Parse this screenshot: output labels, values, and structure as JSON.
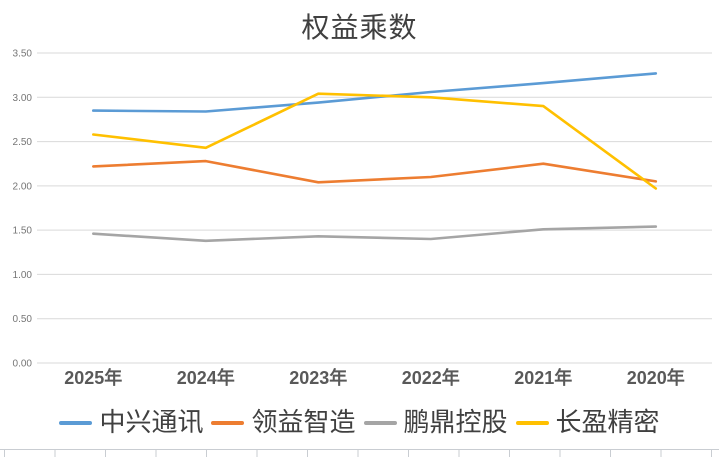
{
  "title": "权益乘数",
  "chart_data": {
    "type": "line",
    "title": "权益乘数",
    "categories": [
      "2025年",
      "2024年",
      "2023年",
      "2022年",
      "2021年",
      "2020年"
    ],
    "series": [
      {
        "name": "中兴通讯",
        "color": "#5B9BD5",
        "values": [
          2.85,
          2.84,
          2.94,
          3.06,
          3.16,
          3.27
        ]
      },
      {
        "name": "领益智造",
        "color": "#ED7D31",
        "values": [
          2.22,
          2.28,
          2.04,
          2.1,
          2.25,
          2.05
        ]
      },
      {
        "name": "鹏鼎控股",
        "color": "#A5A5A5",
        "values": [
          1.46,
          1.38,
          1.43,
          1.4,
          1.51,
          1.54
        ]
      },
      {
        "name": "长盈精密",
        "color": "#FFC000",
        "values": [
          2.58,
          2.43,
          3.04,
          3.0,
          2.9,
          1.97
        ]
      }
    ],
    "ylim": [
      0.0,
      3.5
    ],
    "ytick_step": 0.5,
    "ytick_labels": [
      "3.50",
      "3.00",
      "2.50",
      "2.00",
      "1.50",
      "1.00",
      "0.50",
      "0.00"
    ],
    "xlabel": "",
    "ylabel": "",
    "grid": "horizontal",
    "legend_position": "bottom"
  },
  "colors": {
    "background": "#FFFFFF",
    "gridline": "#D9D9D9",
    "title_text": "#404040",
    "ytick_text": "#767676",
    "xtick_text": "#595959",
    "legend_text": "#404040",
    "sheet_edge_line": "#C9CDD2"
  }
}
